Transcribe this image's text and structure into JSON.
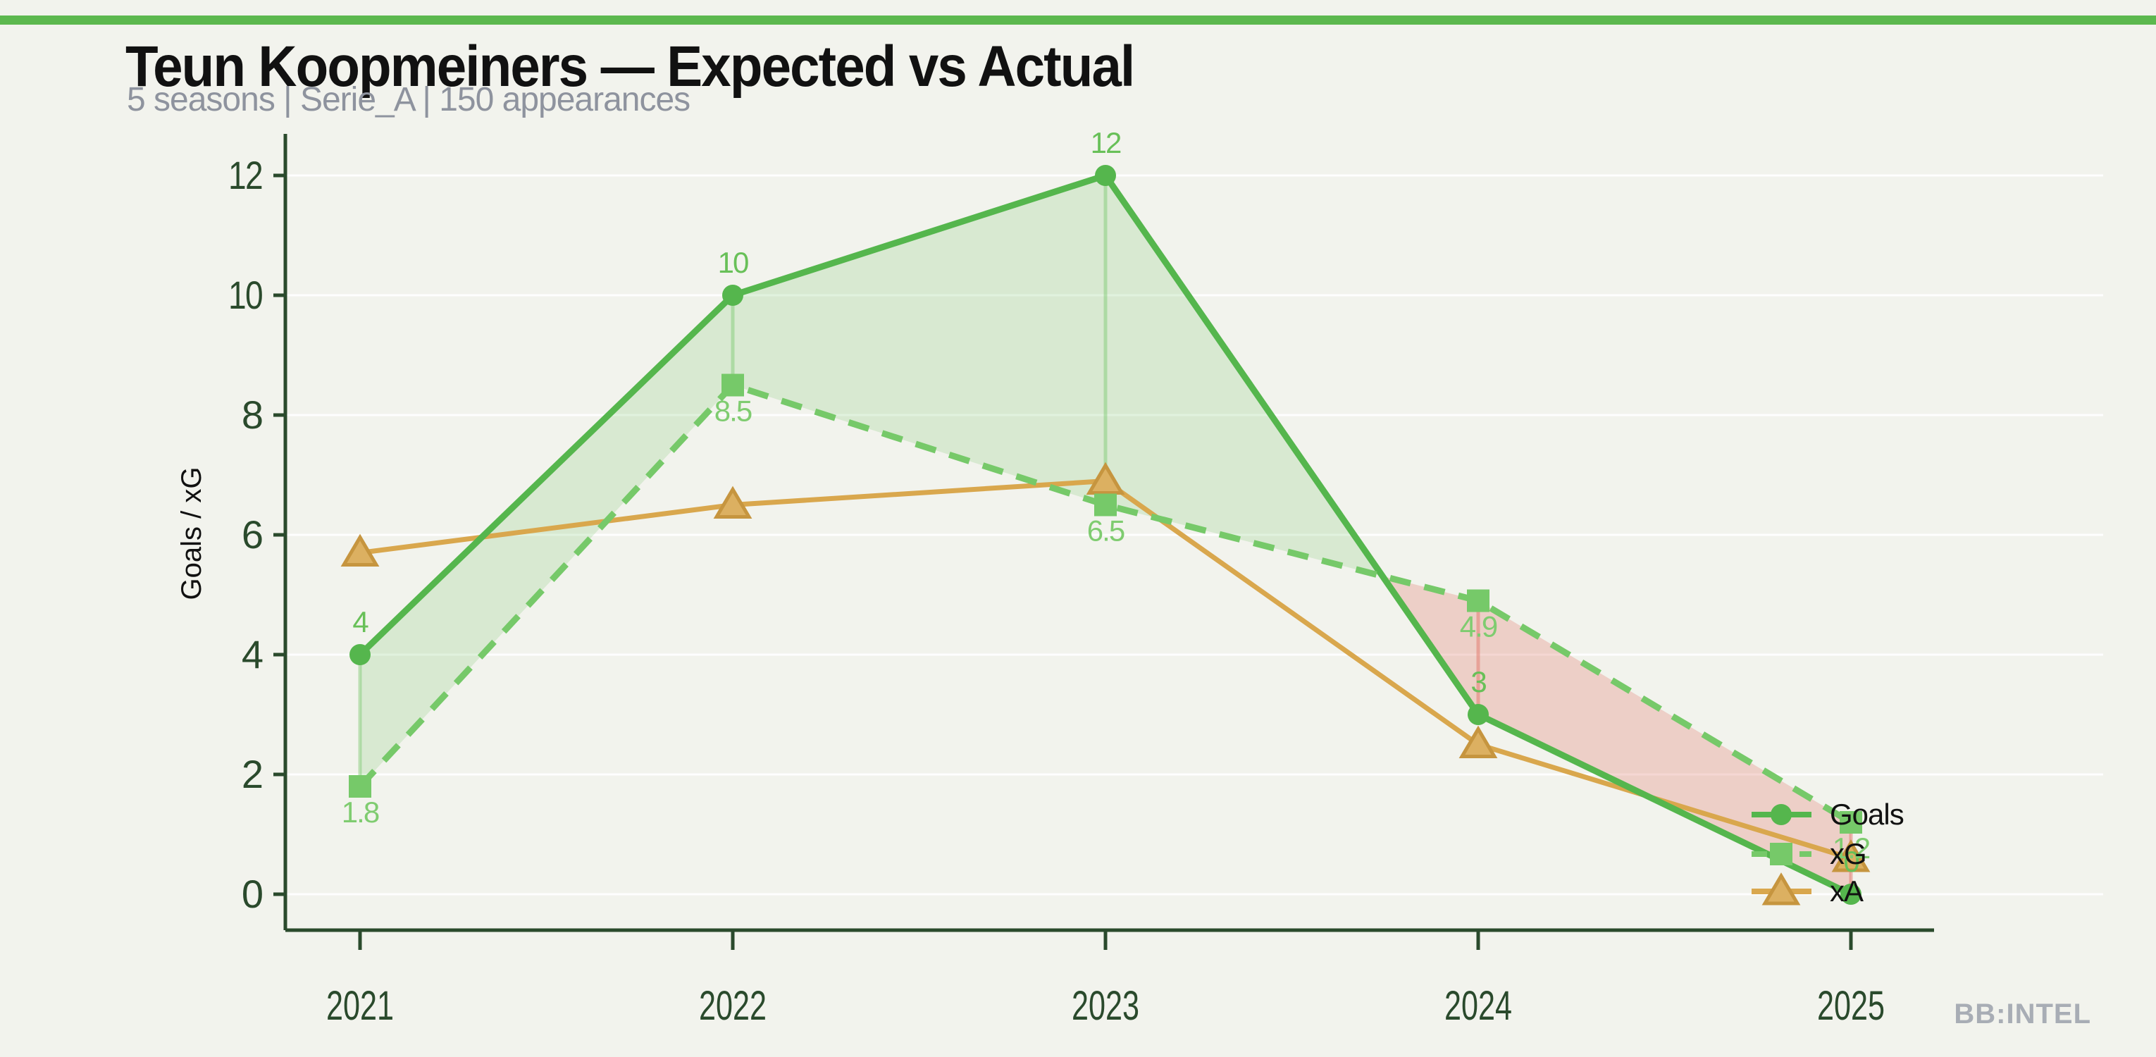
{
  "page": {
    "background_color": "#f2f3ed",
    "accent_bar_color": "#5cb84e",
    "watermark": "BB:INTEL"
  },
  "header": {
    "title": "Teun Koopmeiners — Expected vs Actual",
    "subtitle": "5 seasons | Serie_A | 150 appearances"
  },
  "chart_data": {
    "type": "line",
    "title": "Teun Koopmeiners — Expected vs Actual",
    "subtitle": "5 seasons | Serie_A | 150 appearances",
    "categories": [
      "2021",
      "2022",
      "2023",
      "2024",
      "2025"
    ],
    "series": [
      {
        "name": "Goals",
        "values": [
          4,
          10,
          12,
          3,
          0
        ],
        "labels": [
          "4",
          "10",
          "12",
          "3",
          "0"
        ],
        "label_position": "above",
        "style": "solid",
        "marker": "circle",
        "color": "#55b64d",
        "label_color": "#68c058"
      },
      {
        "name": "xG",
        "values": [
          1.8,
          8.5,
          6.5,
          4.9,
          1.2
        ],
        "labels": [
          "1.8",
          "8.5",
          "6.5",
          "4.9",
          "1.2"
        ],
        "label_position": "below",
        "style": "dashed",
        "marker": "square",
        "color": "#76c969",
        "label_color": "#7fcc70"
      },
      {
        "name": "xA",
        "values": [
          5.7,
          6.5,
          6.9,
          2.5,
          0.6
        ],
        "labels": [],
        "label_position": "none",
        "style": "solid",
        "marker": "triangle",
        "color": "#d9a74d",
        "marker_fill": "#dcb061",
        "marker_edge": "#c6953f"
      }
    ],
    "fill_between": {
      "upper": "Goals",
      "lower": "xG",
      "positive_color": "rgba(121,199,108,0.22)",
      "negative_color": "rgba(226,125,113,0.30)",
      "positive_connector": "rgba(121,199,108,0.45)",
      "negative_connector": "rgba(226,125,113,0.55)"
    },
    "xlabel": "",
    "ylabel": "Goals / xG",
    "ylim": [
      0,
      12
    ],
    "yticks": [
      0,
      2,
      4,
      6,
      8,
      10,
      12
    ],
    "grid": "horizontal",
    "grid_color": "rgba(255,255,255,0.9)",
    "axis_color": "#2a4a2c",
    "ylabel_color": "#111111",
    "legend": {
      "position": "right",
      "entries": [
        "Goals",
        "xG",
        "xA"
      ],
      "text_color": "#111111"
    }
  }
}
